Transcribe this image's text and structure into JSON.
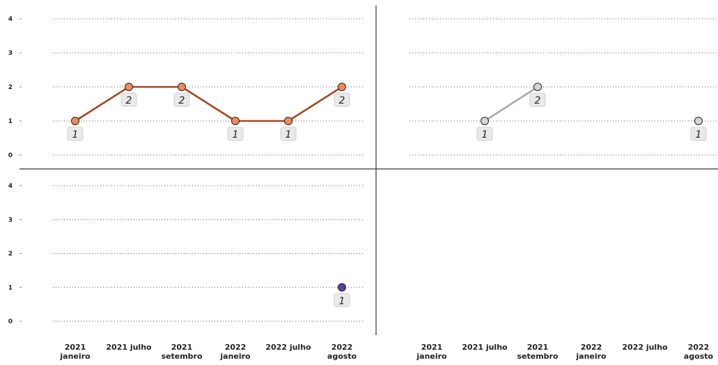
{
  "chart_data": {
    "type": "line",
    "layout": "small-multiples-2x2",
    "categories": [
      [
        "2021",
        "janeiro"
      ],
      [
        "2021 julho"
      ],
      [
        "2021",
        "setembro"
      ],
      [
        "2022",
        "janeiro"
      ],
      [
        "2022 julho"
      ],
      [
        "2022",
        "agosto"
      ]
    ],
    "ylim": [
      0,
      4
    ],
    "yticks": [
      "0",
      "1",
      "2",
      "3",
      "4"
    ],
    "grid": "dotted-horizontal",
    "panels": [
      {
        "color": "#A94420",
        "marker_color": "#F08A5D",
        "values": [
          1,
          2,
          2,
          1,
          1,
          2
        ],
        "labels": [
          "1",
          "2",
          "2",
          "1",
          "1",
          "2"
        ]
      },
      {
        "color": "#AAAAAA",
        "marker_color": "#D4D4D4",
        "values": [
          null,
          1,
          2,
          null,
          null,
          1
        ],
        "labels": [
          "",
          "1",
          "2",
          "",
          "",
          "1"
        ]
      },
      {
        "color": "#4B2C8A",
        "marker_color": "#5B3BAE",
        "values": [
          null,
          null,
          null,
          null,
          null,
          1
        ],
        "labels": [
          "",
          "",
          "",
          "",
          "",
          "1"
        ]
      },
      {
        "color": "#AAAAAA",
        "marker_color": "#D4D4D4",
        "values": [
          null,
          null,
          null,
          null,
          null,
          null
        ],
        "labels": [
          "",
          "",
          "",
          "",
          "",
          ""
        ]
      }
    ]
  }
}
